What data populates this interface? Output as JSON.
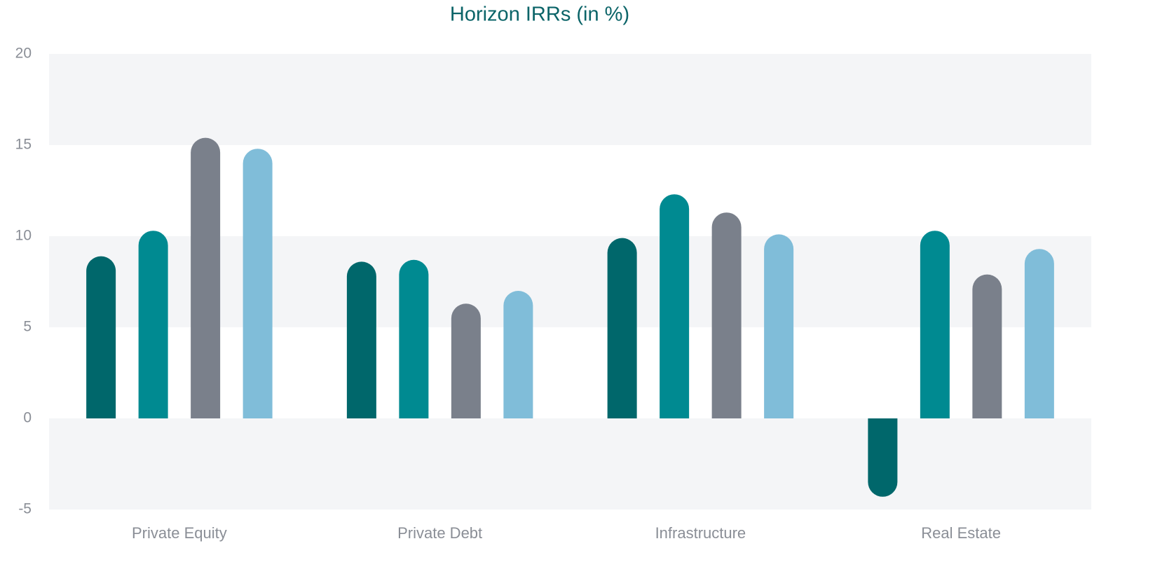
{
  "chart_data": {
    "type": "bar",
    "title": "Horizon IRRs (in %)",
    "categories": [
      "Private Equity",
      "Private Debt",
      "Infrastructure",
      "Real Estate"
    ],
    "series": [
      {
        "color": "#00676b",
        "values": [
          8.9,
          8.6,
          9.9,
          -4.3
        ]
      },
      {
        "color": "#008a91",
        "values": [
          10.3,
          8.7,
          12.3,
          10.3
        ]
      },
      {
        "color": "#7a808b",
        "values": [
          15.4,
          6.3,
          11.3,
          7.9
        ]
      },
      {
        "color": "#80bdd9",
        "values": [
          14.8,
          7.0,
          10.1,
          9.3
        ]
      }
    ],
    "ylim": [
      -5,
      20
    ],
    "yticks": [
      -5,
      0,
      5,
      10,
      15,
      20
    ],
    "bands": true
  }
}
